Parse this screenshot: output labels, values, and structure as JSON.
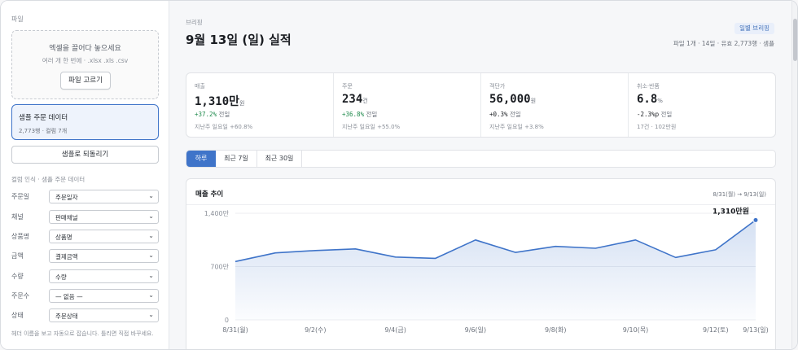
{
  "sidebar": {
    "section_label": "파일",
    "dropzone": {
      "title": "엑셀을 끌어다 놓으세요",
      "subtitle": "여러 개 한 번에 · .xlsx .xls .csv",
      "button": "파일 고르기"
    },
    "sample": {
      "title": "샘플 주문 데이터",
      "subtitle": "2,773행 · 컬럼 7개"
    },
    "revert_button": "샘플로 되돌리기",
    "mapping_label": "컬럼 인식 · 샘플 주문 데이터",
    "fields": [
      {
        "label": "주문일",
        "value": "주문일자"
      },
      {
        "label": "채널",
        "value": "판매채널"
      },
      {
        "label": "상품명",
        "value": "상품명"
      },
      {
        "label": "금액",
        "value": "결제금액"
      },
      {
        "label": "수량",
        "value": "수량"
      },
      {
        "label": "주문수",
        "value": "— 없음 —"
      },
      {
        "label": "상태",
        "value": "주문상태"
      }
    ],
    "help": "헤더 이름을 보고 자동으로 잡습니다. 틀리면 직접 바꾸세요."
  },
  "header": {
    "crumb": "브리핑",
    "title": "9월 13일 (일) 실적",
    "badge": "일별 브리핑",
    "meta": "파일 1개 · 14일 · 유효 2,773행 · 샘플"
  },
  "kpis": [
    {
      "label": "매출",
      "value": "1,310만",
      "unit": "원",
      "delta": "+37.2%",
      "delta_text": "전일",
      "dir": "up",
      "compare": "지난주 일요일 +60.8%"
    },
    {
      "label": "주문",
      "value": "234",
      "unit": "건",
      "delta": "+36.8%",
      "delta_text": "전일",
      "dir": "up",
      "compare": "지난주 일요일 +55.0%"
    },
    {
      "label": "객단가",
      "value": "56,000",
      "unit": "원",
      "delta": "+0.3%",
      "delta_text": "전일",
      "dir": "down",
      "compare": "지난주 일요일 +3.8%"
    },
    {
      "label": "취소·반품",
      "value": "6.8",
      "unit": "%",
      "delta": "-2.3%p",
      "delta_text": "전일",
      "dir": "down",
      "compare": "17건 · 102만원"
    }
  ],
  "tabs": [
    "하루",
    "최근 7일",
    "최근 30일"
  ],
  "chart_card": {
    "title": "매출 추이",
    "range": "8/31(월) → 9/13(일)"
  },
  "colors": {
    "accent": "#3f74c9",
    "up": "#1f8a4c"
  },
  "chart_data": {
    "type": "area",
    "title": "매출 추이",
    "x": [
      "8/31(월)",
      "9/1(화)",
      "9/2(수)",
      "9/3(목)",
      "9/4(금)",
      "9/5(토)",
      "9/6(일)",
      "9/7(월)",
      "9/8(화)",
      "9/9(수)",
      "9/10(목)",
      "9/11(금)",
      "9/12(토)",
      "9/13(일)"
    ],
    "x_tick_labels": [
      "8/31(월)",
      "9/2(수)",
      "9/4(금)",
      "9/6(일)",
      "9/8(화)",
      "9/10(목)",
      "9/12(토)",
      "9/13(일)"
    ],
    "y_ticks": [
      "0",
      "700만",
      "1,400만"
    ],
    "ylim": [
      0,
      1400
    ],
    "values": [
      766,
      880,
      910,
      932,
      825,
      808,
      1050,
      886,
      965,
      940,
      1050,
      820,
      920,
      1310
    ],
    "end_label": "1,310만원",
    "grid": true
  }
}
